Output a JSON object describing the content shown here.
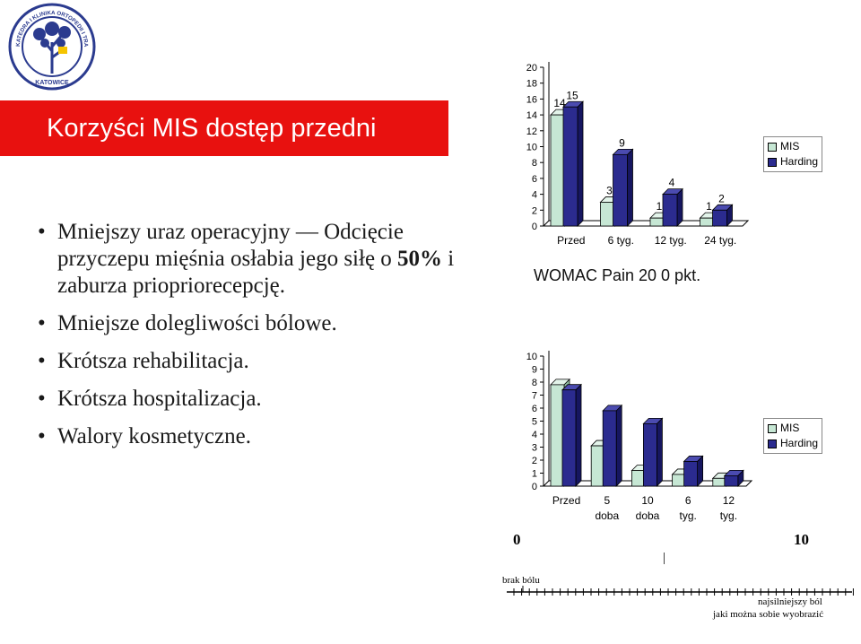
{
  "logo": {
    "ring_text": "KATEDRA I KLINIKA ORTOPEDII I TRAUMATOLOGII NARZĄDU RUCHU ŚUM",
    "city": "KATOWICE"
  },
  "title": "Korzyści MIS   dostęp przedni",
  "bullets": [
    {
      "pre": "Mniejszy uraz operacyjny — Odcięcie przyczepu mięśnia osłabia jego siłę o ",
      "bold": "50%",
      "post": " i zaburza priopriorecepcję."
    },
    {
      "text": "Mniejsze dolegliwości bólowe."
    },
    {
      "text": "Krótsza rehabilitacja."
    },
    {
      "text": "Krótsza hospitalizacja."
    },
    {
      "text": "Walory kosmetyczne."
    }
  ],
  "colors": {
    "mis": "#c6e7d4",
    "harding": "#2b2b8f",
    "title_bar": "#e8110f"
  },
  "chart_data": [
    {
      "type": "bar",
      "categories": [
        "Przed",
        "6 tyg.",
        "12 tyg.",
        "24 tyg."
      ],
      "series": [
        {
          "name": "MIS",
          "values": [
            14,
            3,
            1,
            1
          ]
        },
        {
          "name": "Harding",
          "values": [
            15,
            9,
            4,
            2
          ]
        }
      ],
      "data_labels": [
        [
          "14",
          "3",
          "1",
          "1"
        ],
        [
          "15",
          "9",
          "4",
          "2"
        ]
      ],
      "ylim": [
        0,
        20
      ],
      "yticks": [
        "0",
        "2",
        "4",
        "6",
        "8",
        "10",
        "12",
        "14",
        "16",
        "18",
        "20"
      ],
      "legend": "right",
      "caption": "WOMAC Pain 20    0 pkt."
    },
    {
      "type": "bar",
      "categories": [
        "Przed",
        "5 doba",
        "10 doba",
        "6 tyg.",
        "12 tyg."
      ],
      "series": [
        {
          "name": "MIS",
          "values": [
            7.8,
            3.1,
            1.2,
            0.9,
            0.6
          ]
        },
        {
          "name": "Harding",
          "values": [
            7.4,
            5.8,
            4.8,
            1.9,
            0.8
          ]
        }
      ],
      "ylim": [
        0,
        10
      ],
      "yticks": [
        "0",
        "1",
        "2",
        "3",
        "4",
        "5",
        "6",
        "7",
        "8",
        "9",
        "10"
      ],
      "legend": "right"
    }
  ],
  "pain_scale": {
    "min": "0",
    "max": "10",
    "marker": "|",
    "left_label": "brak bólu",
    "right_label_1": "najsilniejszy ból",
    "right_label_2": "jaki można sobie wyobrazić"
  }
}
